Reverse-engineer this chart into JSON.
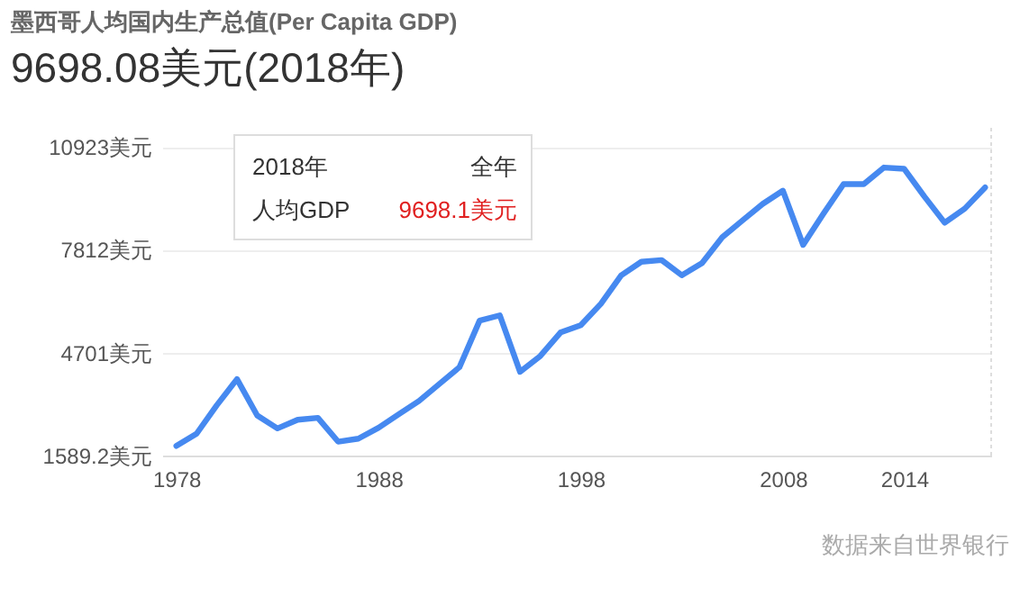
{
  "chart_data": {
    "type": "line",
    "title": "墨西哥人均国内生产总值(Per Capita GDP)",
    "subtitle": "9698.08美元(2018年)",
    "x": [
      1978,
      1979,
      1980,
      1981,
      1982,
      1983,
      1984,
      1985,
      1986,
      1987,
      1988,
      1989,
      1990,
      1991,
      1992,
      1993,
      1994,
      1995,
      1996,
      1997,
      1998,
      1999,
      2000,
      2001,
      2002,
      2003,
      2004,
      2005,
      2006,
      2007,
      2008,
      2009,
      2010,
      2011,
      2012,
      2013,
      2014,
      2015,
      2016,
      2017,
      2018
    ],
    "series": [
      {
        "color": "#4689f0",
        "values": [
          1880,
          2250,
          3110,
          3900,
          2800,
          2410,
          2670,
          2730,
          2010,
          2100,
          2430,
          2840,
          3240,
          3750,
          4260,
          5670,
          5830,
          4120,
          4600,
          5310,
          5530,
          6180,
          7040,
          7450,
          7500,
          7040,
          7410,
          8190,
          8700,
          9200,
          9600,
          7960,
          8900,
          9800,
          9800,
          10300,
          10260,
          9420,
          8630,
          9060,
          9698.1
        ]
      }
    ],
    "xlim": [
      1977.3,
      2018.3
    ],
    "xticks": [
      1978,
      1988,
      1998,
      2008,
      2014
    ],
    "ylim": [
      1589.2,
      11500
    ],
    "yticks": [
      {
        "value": 1589.2,
        "label": "1589.2美元"
      },
      {
        "value": 4701,
        "label": "4701美元"
      },
      {
        "value": 7812,
        "label": "7812美元"
      },
      {
        "value": 10923,
        "label": "10923美元"
      }
    ],
    "grid": "y",
    "marker": "none",
    "line_style": "solid",
    "annotations": [
      "2018年",
      "全年",
      "人均GDP",
      "9698.1美元",
      "数据来自世界银行"
    ]
  }
}
